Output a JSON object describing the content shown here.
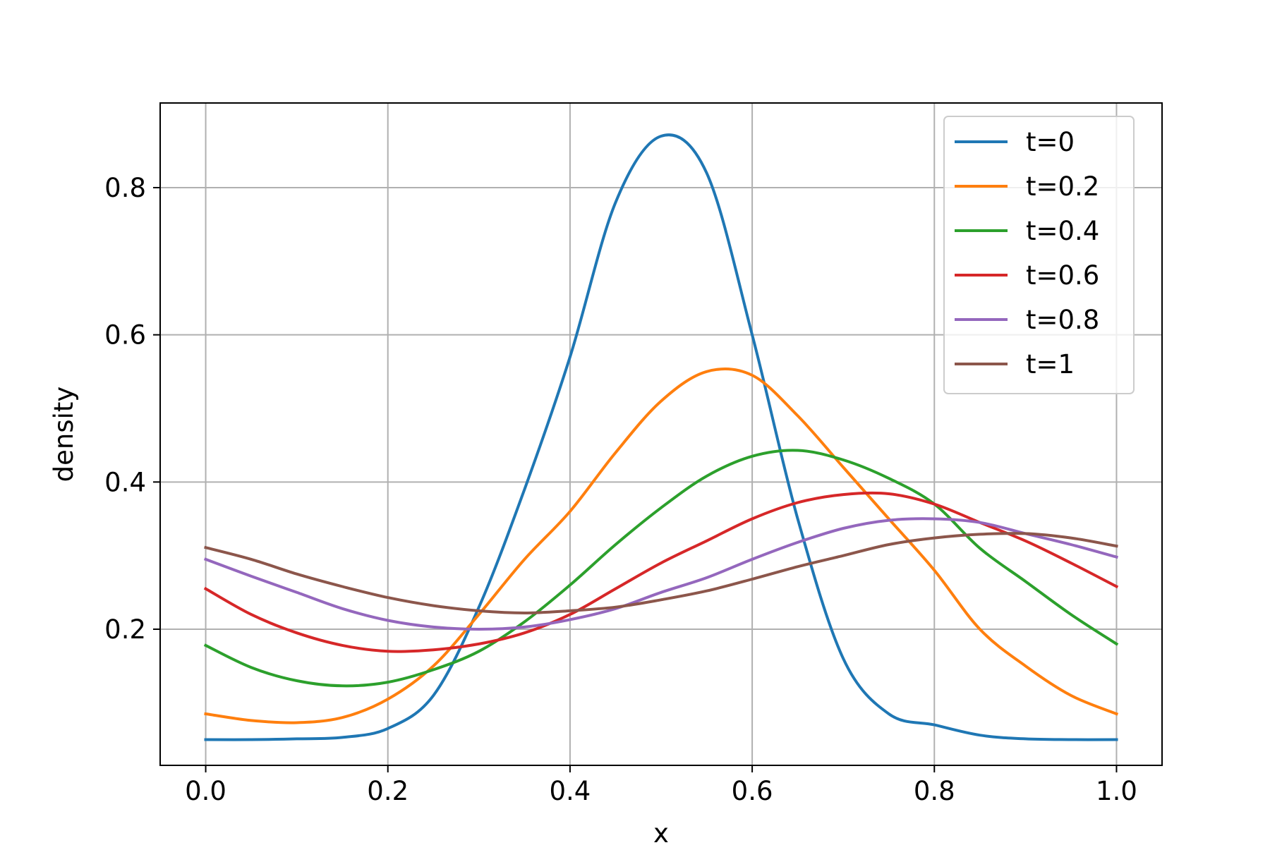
{
  "chart_data": {
    "type": "line",
    "title": "",
    "xlabel": "x",
    "ylabel": "density",
    "xlim": [
      -0.05,
      1.05
    ],
    "ylim": [
      0.015,
      0.915
    ],
    "xticks": [
      "0.0",
      "0.2",
      "0.4",
      "0.6",
      "0.8",
      "1.0"
    ],
    "yticks": [
      "0.2",
      "0.4",
      "0.6",
      "0.8"
    ],
    "grid": true,
    "legend_position": "upper right",
    "x": [
      0.0,
      0.05,
      0.1,
      0.15,
      0.2,
      0.25,
      0.3,
      0.35,
      0.4,
      0.45,
      0.5,
      0.55,
      0.6,
      0.65,
      0.7,
      0.75,
      0.8,
      0.85,
      0.9,
      0.95,
      1.0
    ],
    "series": [
      {
        "name": "t=0",
        "color": "#1f77b4",
        "values": [
          0.05,
          0.05,
          0.051,
          0.053,
          0.065,
          0.11,
          0.23,
          0.39,
          0.57,
          0.78,
          0.87,
          0.82,
          0.6,
          0.35,
          0.16,
          0.085,
          0.07,
          0.056,
          0.051,
          0.05,
          0.05
        ]
      },
      {
        "name": "t=0.2",
        "color": "#ff7f0e",
        "values": [
          0.085,
          0.076,
          0.073,
          0.08,
          0.105,
          0.15,
          0.22,
          0.295,
          0.36,
          0.44,
          0.51,
          0.55,
          0.545,
          0.49,
          0.42,
          0.35,
          0.28,
          0.2,
          0.15,
          0.11,
          0.085
        ]
      },
      {
        "name": "t=0.4",
        "color": "#2ca02c",
        "values": [
          0.178,
          0.148,
          0.13,
          0.123,
          0.128,
          0.145,
          0.17,
          0.21,
          0.26,
          0.315,
          0.365,
          0.408,
          0.435,
          0.443,
          0.43,
          0.405,
          0.37,
          0.31,
          0.265,
          0.22,
          0.18
        ]
      },
      {
        "name": "t=0.6",
        "color": "#d62728",
        "values": [
          0.255,
          0.22,
          0.195,
          0.178,
          0.17,
          0.172,
          0.18,
          0.195,
          0.22,
          0.255,
          0.29,
          0.32,
          0.35,
          0.372,
          0.383,
          0.384,
          0.37,
          0.345,
          0.32,
          0.29,
          0.258
        ]
      },
      {
        "name": "t=0.8",
        "color": "#9467bd",
        "values": [
          0.295,
          0.272,
          0.25,
          0.228,
          0.212,
          0.203,
          0.2,
          0.203,
          0.213,
          0.228,
          0.25,
          0.27,
          0.295,
          0.318,
          0.337,
          0.348,
          0.35,
          0.345,
          0.33,
          0.315,
          0.298
        ]
      },
      {
        "name": "t=1",
        "color": "#8c564b",
        "values": [
          0.311,
          0.295,
          0.275,
          0.258,
          0.243,
          0.232,
          0.225,
          0.222,
          0.225,
          0.23,
          0.24,
          0.252,
          0.268,
          0.285,
          0.3,
          0.315,
          0.324,
          0.329,
          0.33,
          0.324,
          0.313
        ]
      }
    ]
  }
}
